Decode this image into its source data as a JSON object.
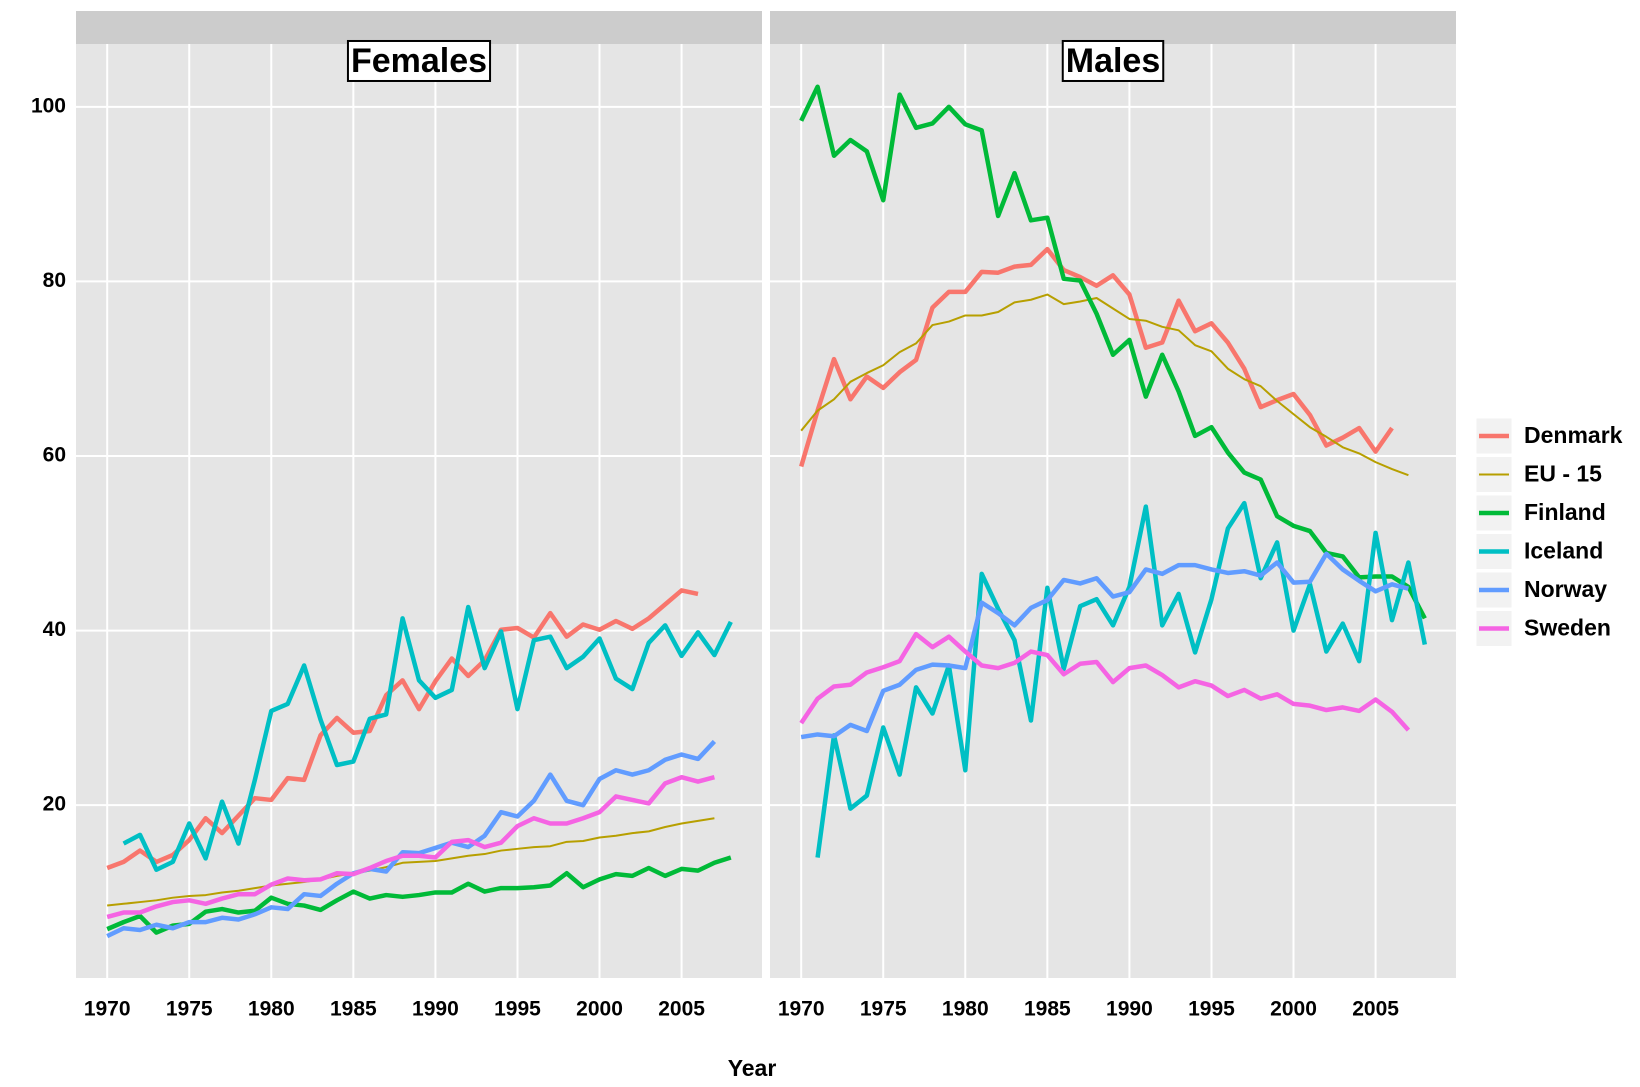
{
  "chart_data": [
    {
      "type": "line",
      "title": "Females",
      "x_label": "Year",
      "x": [
        1970,
        1971,
        1972,
        1973,
        1974,
        1975,
        1976,
        1977,
        1978,
        1979,
        1980,
        1981,
        1982,
        1983,
        1984,
        1985,
        1986,
        1987,
        1988,
        1989,
        1990,
        1991,
        1992,
        1993,
        1994,
        1995,
        1996,
        1997,
        1998,
        1999,
        2000,
        2001,
        2002,
        2003,
        2004,
        2005,
        2006,
        2007,
        2008
      ],
      "xlim": [
        1968.1,
        2009.9
      ],
      "xticks": [
        1970,
        1975,
        1980,
        1985,
        1990,
        1995,
        2000,
        2005
      ],
      "ylim": [
        0.2,
        107.2
      ],
      "yticks": [
        20,
        40,
        60,
        80,
        100
      ],
      "grid": true,
      "series": [
        {
          "color": "#F8766D",
          "line_width": 4.5,
          "values": [
            12.8,
            13.5,
            14.8,
            13.5,
            14.3,
            16,
            18.5,
            16.8,
            18.8,
            20.8,
            20.6,
            23.1,
            22.9,
            28,
            30,
            28.3,
            28.5,
            32.6,
            34.3,
            31,
            34.2,
            36.8,
            34.8,
            36.6,
            40.1,
            40.3,
            39.2,
            42,
            39.3,
            40.7,
            40.1,
            41.1,
            40.2,
            41.4,
            43,
            44.6,
            44.2,
            null,
            null
          ]
        },
        {
          "color": "#B79F00",
          "line_width": 2,
          "values": [
            8.5,
            8.7,
            8.9,
            9.1,
            9.4,
            9.6,
            9.7,
            10.0,
            10.2,
            10.5,
            10.8,
            11.0,
            11.2,
            11.5,
            11.9,
            12.2,
            12.5,
            12.9,
            13.4,
            13.5,
            13.6,
            13.9,
            14.2,
            14.4,
            14.8,
            15.0,
            15.2,
            15.3,
            15.8,
            15.9,
            16.3,
            16.5,
            16.8,
            17.0,
            17.5,
            17.9,
            18.2,
            18.5,
            null
          ]
        },
        {
          "color": "#00BA38",
          "line_width": 4.5,
          "values": [
            5.8,
            6.6,
            7.3,
            5.4,
            6.2,
            6.4,
            7.8,
            8.1,
            7.7,
            7.9,
            9.4,
            8.7,
            8.5,
            8.0,
            9.1,
            10.1,
            9.3,
            9.7,
            9.5,
            9.7,
            10.0,
            10.0,
            11.0,
            10.1,
            10.5,
            10.5,
            10.6,
            10.8,
            12.2,
            10.6,
            11.5,
            12.1,
            11.9,
            12.8,
            11.9,
            12.7,
            12.5,
            13.4,
            14.0
          ]
        },
        {
          "color": "#00BFC4",
          "line_width": 4.5,
          "values": [
            null,
            15.6,
            16.6,
            12.6,
            13.5,
            17.9,
            13.9,
            20.4,
            15.6,
            22.9,
            30.8,
            31.6,
            36.0,
            29.8,
            24.6,
            25.0,
            29.9,
            30.4,
            41.4,
            34.3,
            32.3,
            33.2,
            42.7,
            35.7,
            39.9,
            31.0,
            38.9,
            39.3,
            35.7,
            37.0,
            39.1,
            34.5,
            33.3,
            38.6,
            40.6,
            37.1,
            39.8,
            37.2,
            41.0
          ]
        },
        {
          "color": "#619CFF",
          "line_width": 4.5,
          "values": [
            5.0,
            5.9,
            5.7,
            6.3,
            5.9,
            6.6,
            6.6,
            7.1,
            6.9,
            7.5,
            8.3,
            8.1,
            9.8,
            9.6,
            11.0,
            12.2,
            12.7,
            12.4,
            14.6,
            14.5,
            15.1,
            15.7,
            15.2,
            16.5,
            19.2,
            18.7,
            20.5,
            23.5,
            20.5,
            20.0,
            23.0,
            24.0,
            23.5,
            24.0,
            25.2,
            25.8,
            25.3,
            27.3,
            null
          ]
        },
        {
          "color": "#F564E3",
          "line_width": 4.5,
          "values": [
            7.2,
            7.7,
            7.7,
            8.4,
            8.9,
            9.1,
            8.7,
            9.3,
            9.8,
            9.8,
            10.9,
            11.6,
            11.4,
            11.5,
            12.2,
            12.1,
            12.8,
            13.6,
            14.2,
            14.2,
            14.0,
            15.8,
            16.0,
            15.2,
            15.7,
            17.6,
            18.5,
            17.9,
            17.9,
            18.5,
            19.2,
            21.0,
            20.6,
            20.2,
            22.5,
            23.2,
            22.7,
            23.2,
            null
          ]
        }
      ]
    },
    {
      "type": "line",
      "title": "Males",
      "x": [
        1970,
        1971,
        1972,
        1973,
        1974,
        1975,
        1976,
        1977,
        1978,
        1979,
        1980,
        1981,
        1982,
        1983,
        1984,
        1985,
        1986,
        1987,
        1988,
        1989,
        1990,
        1991,
        1992,
        1993,
        1994,
        1995,
        1996,
        1997,
        1998,
        1999,
        2000,
        2001,
        2002,
        2003,
        2004,
        2005,
        2006,
        2007,
        2008
      ],
      "xlim": [
        1968.1,
        2009.9
      ],
      "xticks": [
        1970,
        1975,
        1980,
        1985,
        1990,
        1995,
        2000,
        2005
      ],
      "ylim": [
        0.2,
        107.2
      ],
      "yticks": [
        20,
        40,
        60,
        80,
        100
      ],
      "grid": true,
      "series": [
        {
          "name": "Denmark",
          "color": "#F8766D",
          "line_width": 4.5,
          "values": [
            58.8,
            65.2,
            71.1,
            66.5,
            69.1,
            67.8,
            69.6,
            71.0,
            77.0,
            78.8,
            78.8,
            81.1,
            81.0,
            81.7,
            81.9,
            83.7,
            81.3,
            80.5,
            79.5,
            80.7,
            78.5,
            72.4,
            73.0,
            77.8,
            74.3,
            75.2,
            73.0,
            70.0,
            65.6,
            66.4,
            67.1,
            64.7,
            61.2,
            62.1,
            63.2,
            60.5,
            63.2,
            null,
            null
          ]
        },
        {
          "name": "EU - 15",
          "color": "#B79F00",
          "line_width": 2,
          "values": [
            62.9,
            65.2,
            66.5,
            68.5,
            69.5,
            70.4,
            71.9,
            72.9,
            75.0,
            75.4,
            76.1,
            76.1,
            76.5,
            77.6,
            77.9,
            78.5,
            77.4,
            77.7,
            78.1,
            76.9,
            75.7,
            75.5,
            74.8,
            74.4,
            72.7,
            72.0,
            70.0,
            68.8,
            68.0,
            66.3,
            64.8,
            63.3,
            62.2,
            61.0,
            60.3,
            59.3,
            58.5,
            57.8,
            null
          ]
        },
        {
          "name": "Finland",
          "color": "#00BA38",
          "line_width": 4.5,
          "values": [
            98.4,
            102.3,
            94.4,
            96.2,
            94.9,
            89.3,
            101.4,
            97.6,
            98.1,
            100.0,
            98.0,
            97.3,
            87.5,
            92.4,
            87.0,
            87.3,
            80.3,
            80.1,
            76.3,
            71.6,
            73.3,
            66.8,
            71.6,
            67.4,
            62.3,
            63.3,
            60.4,
            58.1,
            57.3,
            53.1,
            52.0,
            51.4,
            48.9,
            48.5,
            46.1,
            46.2,
            46.2,
            45.0,
            41.4
          ]
        },
        {
          "name": "Iceland",
          "color": "#00BFC4",
          "line_width": 4.5,
          "values": [
            null,
            14.0,
            28.0,
            19.6,
            21.1,
            28.9,
            23.5,
            33.5,
            30.5,
            36.0,
            24.0,
            46.5,
            42.5,
            38.9,
            29.7,
            44.9,
            35.6,
            42.8,
            43.6,
            40.6,
            45.0,
            54.2,
            40.6,
            44.2,
            37.5,
            43.6,
            51.7,
            54.6,
            46.0,
            50.1,
            40.0,
            45.3,
            37.6,
            40.8,
            36.5,
            51.2,
            41.2,
            47.8,
            38.4
          ]
        },
        {
          "name": "Norway",
          "color": "#619CFF",
          "line_width": 4.5,
          "values": [
            27.8,
            28.1,
            27.9,
            29.2,
            28.5,
            33.1,
            33.8,
            35.5,
            36.1,
            36.0,
            35.7,
            43.2,
            42.0,
            40.6,
            42.6,
            43.5,
            45.8,
            45.4,
            46.0,
            43.9,
            44.4,
            47.0,
            46.5,
            47.5,
            47.5,
            47.0,
            46.6,
            46.8,
            46.3,
            47.8,
            45.5,
            45.6,
            48.8,
            47.0,
            45.7,
            44.5,
            45.3,
            44.8,
            null
          ]
        },
        {
          "name": "Sweden",
          "color": "#F564E3",
          "line_width": 4.5,
          "values": [
            29.4,
            32.2,
            33.6,
            33.8,
            35.2,
            35.8,
            36.5,
            39.6,
            38.1,
            39.3,
            37.6,
            36.0,
            35.7,
            36.3,
            37.6,
            37.2,
            35.0,
            36.2,
            36.4,
            34.1,
            35.7,
            36.0,
            34.9,
            33.5,
            34.2,
            33.7,
            32.5,
            33.2,
            32.2,
            32.7,
            31.6,
            31.4,
            30.9,
            31.2,
            30.8,
            32.1,
            30.7,
            28.6,
            null
          ]
        }
      ]
    }
  ]
}
